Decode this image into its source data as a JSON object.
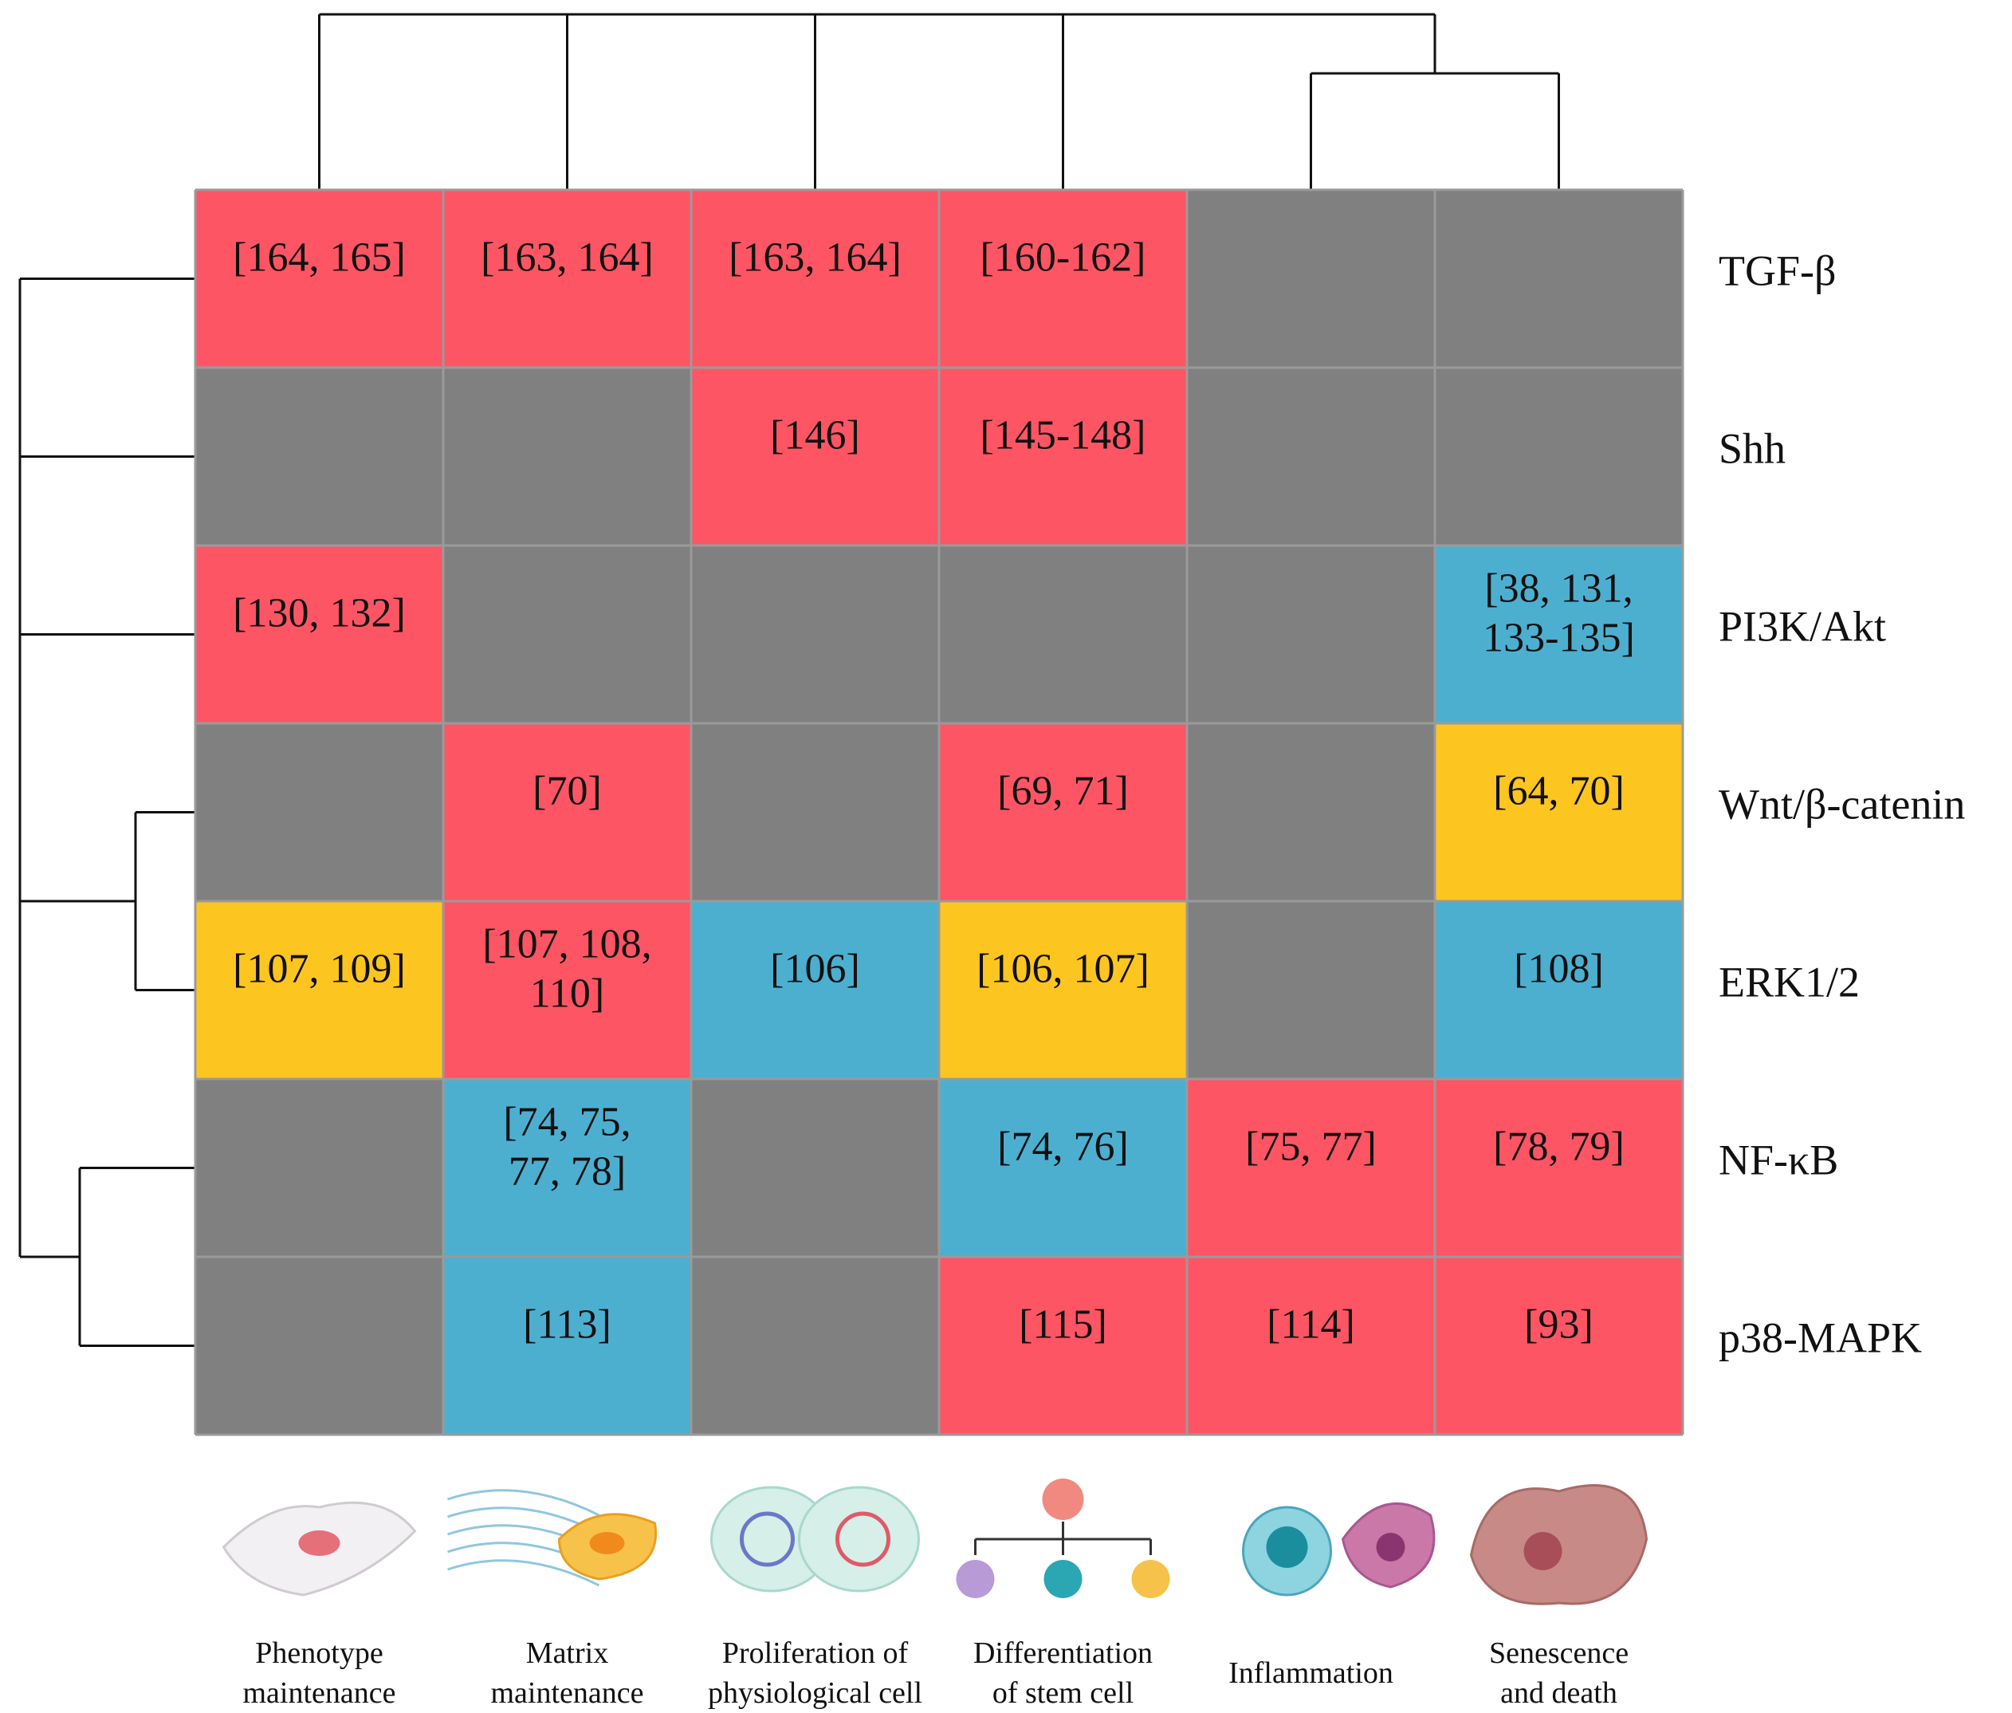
{
  "chart_data": {
    "type": "heatmap",
    "title": "",
    "rows": [
      "TGF-β",
      "Shh",
      "PI3K/Akt",
      "Wnt/β-catenin",
      "ERK1/2",
      "NF-κB",
      "p38-MAPK"
    ],
    "columns": [
      [
        "Phenotype",
        "maintenance"
      ],
      [
        "Matrix",
        "maintenance"
      ],
      [
        "Proliferation of",
        "physiological cell"
      ],
      [
        "Differentiation",
        "of stem cell"
      ],
      [
        "Inflammation"
      ],
      [
        "Senescence",
        "and death"
      ]
    ],
    "legend_colors": {
      "red": "#fe5565",
      "blue": "#4cafd0",
      "yellow": "#fdc520",
      "gray": "#808080"
    },
    "cells": [
      [
        {
          "color": "red",
          "text": [
            "[164, 165]"
          ]
        },
        {
          "color": "red",
          "text": [
            "[163, 164]"
          ]
        },
        {
          "color": "red",
          "text": [
            "[163, 164]"
          ]
        },
        {
          "color": "red",
          "text": [
            "[160-162]"
          ]
        },
        {
          "color": "gray",
          "text": []
        },
        {
          "color": "gray",
          "text": []
        }
      ],
      [
        {
          "color": "gray",
          "text": []
        },
        {
          "color": "gray",
          "text": []
        },
        {
          "color": "red",
          "text": [
            "[146]"
          ]
        },
        {
          "color": "red",
          "text": [
            "[145-148]"
          ]
        },
        {
          "color": "gray",
          "text": []
        },
        {
          "color": "gray",
          "text": []
        }
      ],
      [
        {
          "color": "red",
          "text": [
            "[130, 132]"
          ]
        },
        {
          "color": "gray",
          "text": []
        },
        {
          "color": "gray",
          "text": []
        },
        {
          "color": "gray",
          "text": []
        },
        {
          "color": "gray",
          "text": []
        },
        {
          "color": "blue",
          "text": [
            "[38, 131,",
            "133-135]"
          ]
        }
      ],
      [
        {
          "color": "gray",
          "text": []
        },
        {
          "color": "red",
          "text": [
            "[70]"
          ]
        },
        {
          "color": "gray",
          "text": []
        },
        {
          "color": "red",
          "text": [
            "[69, 71]"
          ]
        },
        {
          "color": "gray",
          "text": []
        },
        {
          "color": "yellow",
          "text": [
            "[64, 70]"
          ]
        }
      ],
      [
        {
          "color": "yellow",
          "text": [
            "[107, 109]"
          ]
        },
        {
          "color": "red",
          "text": [
            "[107, 108,",
            "110]"
          ]
        },
        {
          "color": "blue",
          "text": [
            "[106]"
          ]
        },
        {
          "color": "yellow",
          "text": [
            "[106, 107]"
          ]
        },
        {
          "color": "gray",
          "text": []
        },
        {
          "color": "blue",
          "text": [
            "[108]"
          ]
        }
      ],
      [
        {
          "color": "gray",
          "text": []
        },
        {
          "color": "blue",
          "text": [
            "[74, 75,",
            "77, 78]"
          ]
        },
        {
          "color": "gray",
          "text": []
        },
        {
          "color": "blue",
          "text": [
            "[74, 76]"
          ]
        },
        {
          "color": "red",
          "text": [
            "[75, 77]"
          ]
        },
        {
          "color": "red",
          "text": [
            "[78, 79]"
          ]
        }
      ],
      [
        {
          "color": "gray",
          "text": []
        },
        {
          "color": "blue",
          "text": [
            "[113]"
          ]
        },
        {
          "color": "gray",
          "text": []
        },
        {
          "color": "red",
          "text": [
            "[115]"
          ]
        },
        {
          "color": "red",
          "text": [
            "[114]"
          ]
        },
        {
          "color": "red",
          "text": [
            "[93]"
          ]
        }
      ]
    ],
    "column_icons": [
      "phenotype-cell-icon",
      "matrix-fiber-cell-icon",
      "dividing-cell-icon",
      "stem-cell-differentiation-icon",
      "inflammation-cells-icon",
      "senescent-cell-icon"
    ]
  }
}
